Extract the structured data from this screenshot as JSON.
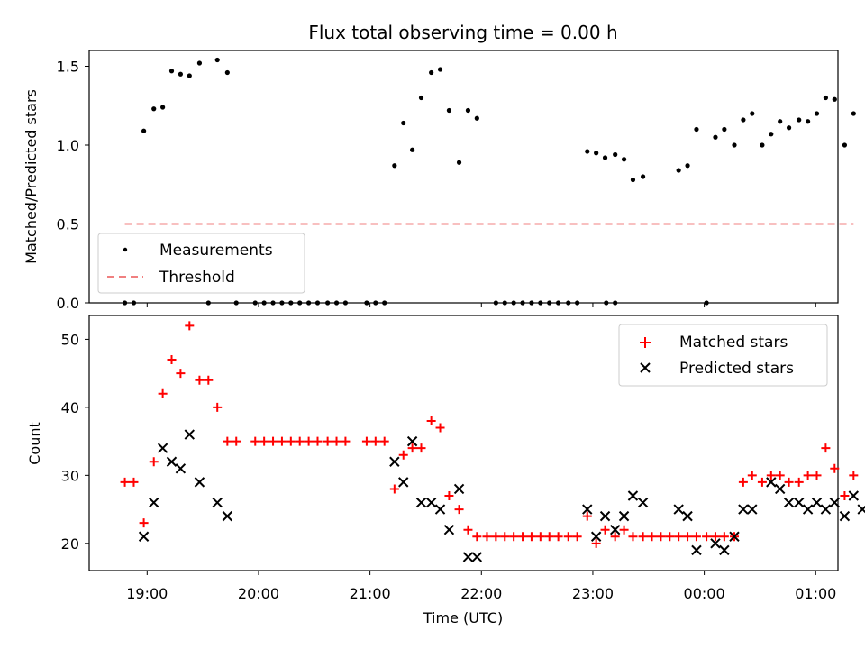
{
  "figure_title": "Flux total observing time = 0.00 h",
  "x_tick_labels": [
    "19:00",
    "20:00",
    "21:00",
    "22:00",
    "23:00",
    "00:00",
    "01:00"
  ],
  "colors": {
    "measurements": "#000000",
    "threshold": "#f08080",
    "matched": "#ff0000",
    "predicted": "#000000"
  },
  "chart_data": [
    {
      "type": "scatter",
      "title": "Flux total observing time = 0.00 h",
      "xlabel": "",
      "ylabel": "Matched/Predicted stars",
      "x_unit": "hours after 19:00 UTC",
      "xlim": [
        -0.52,
        6.2
      ],
      "ylim": [
        0,
        1.6
      ],
      "yticks": [
        "0.0",
        "0.5",
        "1.0",
        "1.5"
      ],
      "grid": false,
      "legend_location": "lower-left",
      "series": [
        {
          "name": "Measurements",
          "points": [
            [
              -0.2,
              0
            ],
            [
              -0.12,
              0
            ],
            [
              -0.03,
              1.09
            ],
            [
              0.06,
              1.23
            ],
            [
              0.14,
              1.24
            ],
            [
              0.22,
              1.47
            ],
            [
              0.3,
              1.45
            ],
            [
              0.38,
              1.44
            ],
            [
              0.47,
              1.52
            ],
            [
              0.55,
              0
            ],
            [
              0.63,
              1.54
            ],
            [
              0.72,
              1.46
            ],
            [
              0.8,
              0
            ],
            [
              0.97,
              0
            ],
            [
              1.05,
              0
            ],
            [
              1.13,
              0
            ],
            [
              1.21,
              0
            ],
            [
              1.29,
              0
            ],
            [
              1.37,
              0
            ],
            [
              1.45,
              0
            ],
            [
              1.53,
              0
            ],
            [
              1.62,
              0
            ],
            [
              1.7,
              0
            ],
            [
              1.78,
              0
            ],
            [
              1.97,
              0
            ],
            [
              2.05,
              0
            ],
            [
              2.13,
              0
            ],
            [
              2.22,
              0.87
            ],
            [
              2.3,
              1.14
            ],
            [
              2.38,
              0.97
            ],
            [
              2.46,
              1.3
            ],
            [
              2.55,
              1.46
            ],
            [
              2.63,
              1.48
            ],
            [
              2.71,
              1.22
            ],
            [
              2.8,
              0.89
            ],
            [
              2.88,
              1.22
            ],
            [
              2.96,
              1.17
            ],
            [
              3.13,
              0
            ],
            [
              3.21,
              0
            ],
            [
              3.29,
              0
            ],
            [
              3.37,
              0
            ],
            [
              3.45,
              0
            ],
            [
              3.53,
              0
            ],
            [
              3.61,
              0
            ],
            [
              3.69,
              0
            ],
            [
              3.78,
              0
            ],
            [
              3.86,
              0
            ],
            [
              3.95,
              0.96
            ],
            [
              4.03,
              0.95
            ],
            [
              4.11,
              0.92
            ],
            [
              4.2,
              0.94
            ],
            [
              4.28,
              0.91
            ],
            [
              4.36,
              0.78
            ],
            [
              4.45,
              0.8
            ],
            [
              4.12,
              0
            ],
            [
              4.2,
              0
            ],
            [
              4.77,
              0.84
            ],
            [
              4.85,
              0.87
            ],
            [
              4.93,
              1.1
            ],
            [
              5.02,
              0
            ],
            [
              5.1,
              1.05
            ],
            [
              5.18,
              1.1
            ],
            [
              5.27,
              1.0
            ],
            [
              5.35,
              1.16
            ],
            [
              5.43,
              1.2
            ],
            [
              5.52,
              1.0
            ],
            [
              5.6,
              1.07
            ],
            [
              5.68,
              1.15
            ],
            [
              5.76,
              1.11
            ],
            [
              5.85,
              1.16
            ],
            [
              5.93,
              1.15
            ],
            [
              6.01,
              1.2
            ],
            [
              6.09,
              1.3
            ],
            [
              6.17,
              1.29
            ],
            [
              6.26,
              1.0
            ],
            [
              6.34,
              1.2
            ]
          ]
        },
        {
          "name": "Threshold",
          "line": [
            [
              -0.2,
              0.5
            ],
            [
              6.34,
              0.5
            ]
          ]
        }
      ]
    },
    {
      "type": "scatter",
      "title": "",
      "xlabel": "Time (UTC)",
      "ylabel": "Count",
      "x_unit": "hours after 19:00 UTC",
      "xlim": [
        -0.52,
        6.2
      ],
      "ylim": [
        16,
        53.5
      ],
      "yticks": [
        "20",
        "30",
        "40",
        "50"
      ],
      "grid": false,
      "legend_location": "upper-right",
      "series": [
        {
          "name": "Matched stars",
          "points": [
            [
              -0.2,
              29
            ],
            [
              -0.12,
              29
            ],
            [
              -0.03,
              23
            ],
            [
              0.06,
              32
            ],
            [
              0.14,
              42
            ],
            [
              0.22,
              47
            ],
            [
              0.3,
              45
            ],
            [
              0.38,
              52
            ],
            [
              0.47,
              44
            ],
            [
              0.55,
              44
            ],
            [
              0.63,
              40
            ],
            [
              0.72,
              35
            ],
            [
              0.8,
              35
            ],
            [
              0.97,
              35
            ],
            [
              1.05,
              35
            ],
            [
              1.13,
              35
            ],
            [
              1.21,
              35
            ],
            [
              1.29,
              35
            ],
            [
              1.37,
              35
            ],
            [
              1.45,
              35
            ],
            [
              1.53,
              35
            ],
            [
              1.62,
              35
            ],
            [
              1.7,
              35
            ],
            [
              1.78,
              35
            ],
            [
              1.97,
              35
            ],
            [
              2.05,
              35
            ],
            [
              2.13,
              35
            ],
            [
              2.22,
              28
            ],
            [
              2.3,
              33
            ],
            [
              2.38,
              34
            ],
            [
              2.46,
              34
            ],
            [
              2.55,
              38
            ],
            [
              2.63,
              37
            ],
            [
              2.71,
              27
            ],
            [
              2.8,
              25
            ],
            [
              2.88,
              22
            ],
            [
              2.96,
              21
            ],
            [
              3.05,
              21
            ],
            [
              3.13,
              21
            ],
            [
              3.21,
              21
            ],
            [
              3.29,
              21
            ],
            [
              3.37,
              21
            ],
            [
              3.45,
              21
            ],
            [
              3.53,
              21
            ],
            [
              3.61,
              21
            ],
            [
              3.69,
              21
            ],
            [
              3.78,
              21
            ],
            [
              3.86,
              21
            ],
            [
              3.95,
              24
            ],
            [
              4.03,
              20
            ],
            [
              4.11,
              22
            ],
            [
              4.2,
              21
            ],
            [
              4.28,
              22
            ],
            [
              4.36,
              21
            ],
            [
              4.45,
              21
            ],
            [
              4.53,
              21
            ],
            [
              4.61,
              21
            ],
            [
              4.69,
              21
            ],
            [
              4.77,
              21
            ],
            [
              4.85,
              21
            ],
            [
              4.93,
              21
            ],
            [
              5.02,
              21
            ],
            [
              5.1,
              21
            ],
            [
              5.18,
              21
            ],
            [
              5.27,
              21
            ],
            [
              5.35,
              29
            ],
            [
              5.43,
              30
            ],
            [
              5.52,
              29
            ],
            [
              5.6,
              30
            ],
            [
              5.68,
              30
            ],
            [
              5.76,
              29
            ],
            [
              5.85,
              29
            ],
            [
              5.93,
              30
            ],
            [
              6.01,
              30
            ],
            [
              6.09,
              34
            ],
            [
              6.17,
              31
            ],
            [
              6.26,
              27
            ],
            [
              6.34,
              30
            ]
          ]
        },
        {
          "name": "Predicted stars",
          "points": [
            [
              -0.03,
              21
            ],
            [
              0.06,
              26
            ],
            [
              0.14,
              34
            ],
            [
              0.22,
              32
            ],
            [
              0.3,
              31
            ],
            [
              0.38,
              36
            ],
            [
              0.47,
              29
            ],
            [
              0.63,
              26
            ],
            [
              0.72,
              24
            ],
            [
              2.22,
              32
            ],
            [
              2.3,
              29
            ],
            [
              2.38,
              35
            ],
            [
              2.46,
              26
            ],
            [
              2.55,
              26
            ],
            [
              2.63,
              25
            ],
            [
              2.71,
              22
            ],
            [
              2.8,
              28
            ],
            [
              2.88,
              18
            ],
            [
              2.96,
              18
            ],
            [
              3.95,
              25
            ],
            [
              4.03,
              21
            ],
            [
              4.11,
              24
            ],
            [
              4.2,
              22
            ],
            [
              4.28,
              24
            ],
            [
              4.36,
              27
            ],
            [
              4.45,
              26
            ],
            [
              4.77,
              25
            ],
            [
              4.85,
              24
            ],
            [
              4.93,
              19
            ],
            [
              5.1,
              20
            ],
            [
              5.18,
              19
            ],
            [
              5.27,
              21
            ],
            [
              5.35,
              25
            ],
            [
              5.43,
              25
            ],
            [
              5.6,
              29
            ],
            [
              5.68,
              28
            ],
            [
              5.76,
              26
            ],
            [
              5.85,
              26
            ],
            [
              5.93,
              25
            ],
            [
              6.01,
              26
            ],
            [
              6.09,
              25
            ],
            [
              6.17,
              26
            ],
            [
              6.26,
              24
            ],
            [
              6.34,
              27
            ],
            [
              6.42,
              25
            ]
          ]
        }
      ]
    }
  ]
}
